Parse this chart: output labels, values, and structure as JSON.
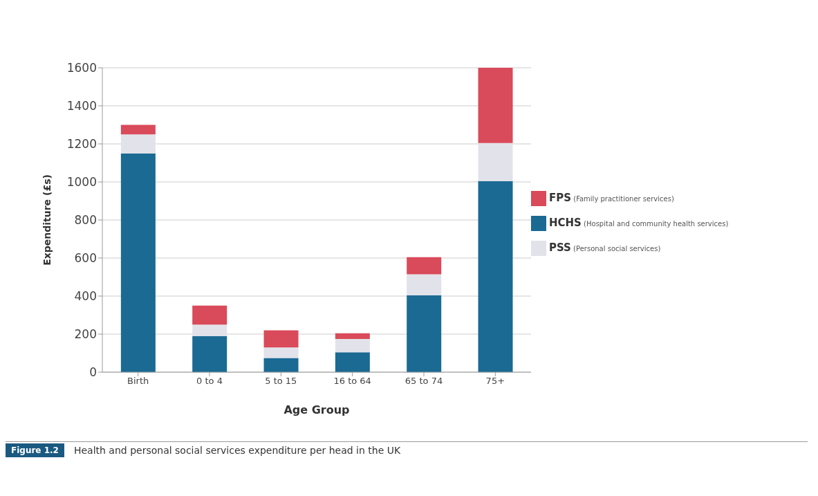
{
  "chart_data": {
    "type": "bar",
    "title": "Health and personal social services expenditure per head in the UK",
    "annotations": [
      "Figure 1.2"
    ],
    "xlabel": "Age Group",
    "ylabel": "Expenditure (£s)",
    "categories": [
      "Birth",
      "0 to 4",
      "5 to 15",
      "16 to 64",
      "65 to 74",
      "75+"
    ],
    "stacked": true,
    "series": [
      {
        "name": "HCHS (Hospital and community health services)",
        "color": "#1a6a94",
        "values": [
          1150,
          190,
          75,
          105,
          405,
          1005
        ]
      },
      {
        "name": "PSS (Personal social services)",
        "color": "#e2e2ea",
        "values": [
          100,
          60,
          55,
          70,
          110,
          200
        ]
      },
      {
        "name": "FPS (Family practitioner services)",
        "color": "#d94a5a",
        "values": [
          50,
          100,
          90,
          30,
          90,
          395
        ]
      }
    ],
    "ylim": [
      0,
      1600
    ],
    "yticks": [
      0,
      200,
      400,
      600,
      800,
      1000,
      1200,
      1400,
      1600
    ],
    "grid": "y",
    "legend": "right"
  }
}
